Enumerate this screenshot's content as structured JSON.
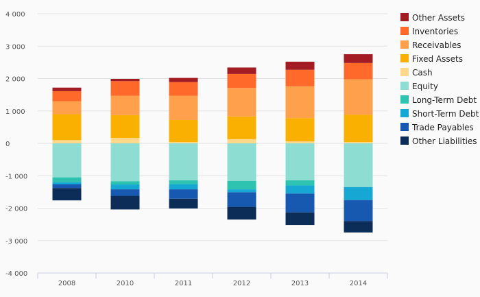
{
  "chart_data": {
    "type": "bar",
    "stacked": true,
    "categories": [
      "2008",
      "2010",
      "2011",
      "2012",
      "2013",
      "2014"
    ],
    "ylim": [
      -4000,
      4000
    ],
    "yticks": [
      4000,
      3000,
      2000,
      1000,
      0,
      -1000,
      -2000,
      -3000,
      -4000
    ],
    "ytick_labels": [
      "4 000",
      "3 000",
      "2 000",
      "1 000",
      "0",
      "-1 000",
      "-2 000",
      "-3 000",
      "-4 000"
    ],
    "legend_placement": "top-right",
    "series": [
      {
        "name": "Other Assets",
        "group": "positive",
        "color": "#a31c23",
        "values": [
          110,
          70,
          130,
          200,
          250,
          270
        ]
      },
      {
        "name": "Inventories",
        "group": "positive",
        "color": "#ff6a2a",
        "values": [
          310,
          450,
          420,
          430,
          510,
          500
        ]
      },
      {
        "name": "Receivables",
        "group": "positive",
        "color": "#ffa04d",
        "values": [
          400,
          600,
          750,
          880,
          980,
          1100
        ]
      },
      {
        "name": "Fixed Assets",
        "group": "positive",
        "color": "#f9b000",
        "values": [
          800,
          700,
          680,
          700,
          720,
          840
        ]
      },
      {
        "name": "Cash",
        "group": "positive",
        "color": "#ffd88a",
        "values": [
          100,
          170,
          40,
          130,
          60,
          40
        ]
      },
      {
        "name": "Equity",
        "group": "negative",
        "color": "#8eddd3",
        "values": [
          1050,
          1170,
          1140,
          1160,
          1140,
          1350
        ]
      },
      {
        "name": "Long-Term Debt",
        "group": "negative",
        "color": "#2ec2b0",
        "values": [
          150,
          100,
          120,
          260,
          160,
          0
        ]
      },
      {
        "name": "Short-Term Debt",
        "group": "negative",
        "color": "#16a8d3",
        "values": [
          60,
          150,
          160,
          90,
          250,
          400
        ]
      },
      {
        "name": "Trade Payables",
        "group": "negative",
        "color": "#1759b0",
        "values": [
          120,
          200,
          290,
          450,
          580,
          650
        ]
      },
      {
        "name": "Other Liabilities",
        "group": "negative",
        "color": "#0c2d57",
        "values": [
          380,
          420,
          300,
          390,
          390,
          350
        ]
      }
    ]
  }
}
